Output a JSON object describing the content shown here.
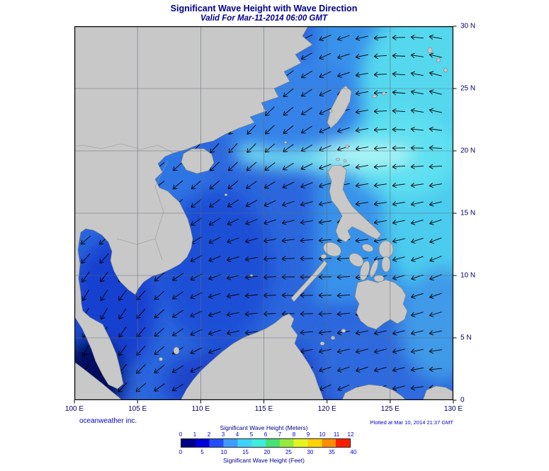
{
  "header": {
    "title": "Significant Wave Height with Wave Direction",
    "subtitle": "Valid For Mar-11-2014 06:00 GMT"
  },
  "footer": {
    "credit": "oceanweather inc.",
    "plotted": "Plotted at Mar 10, 2014 21:37 GMT"
  },
  "axes": {
    "x_ticks": [
      "100 E",
      "105 E",
      "110 E",
      "115 E",
      "120 E",
      "125 E",
      "130 E"
    ],
    "y_ticks": [
      "30 N",
      "25 N",
      "20 N",
      "15 N",
      "10 N",
      "5 N",
      "0"
    ]
  },
  "legend": {
    "meters_label": "Significant Wave Height (Meters)",
    "meters_ticks": [
      0,
      1,
      2,
      3,
      4,
      5,
      6,
      7,
      8,
      9,
      10,
      11,
      12
    ],
    "feet_label": "Significant Wave Height (Feet)",
    "feet_ticks": [
      0,
      5,
      10,
      15,
      20,
      25,
      30,
      35,
      40
    ],
    "colorbar_colors": [
      "#00008b",
      "#0000da",
      "#2050ff",
      "#3f9bff",
      "#3fd2ff",
      "#3fecdc",
      "#46e273",
      "#96ec3c",
      "#e6f41e",
      "#ffd200",
      "#ff8c00",
      "#ff1e00"
    ]
  },
  "map_colors": {
    "ocean_base": "#2b66dd",
    "land": "#c8c8c8",
    "grid": "#5f6a75"
  }
}
